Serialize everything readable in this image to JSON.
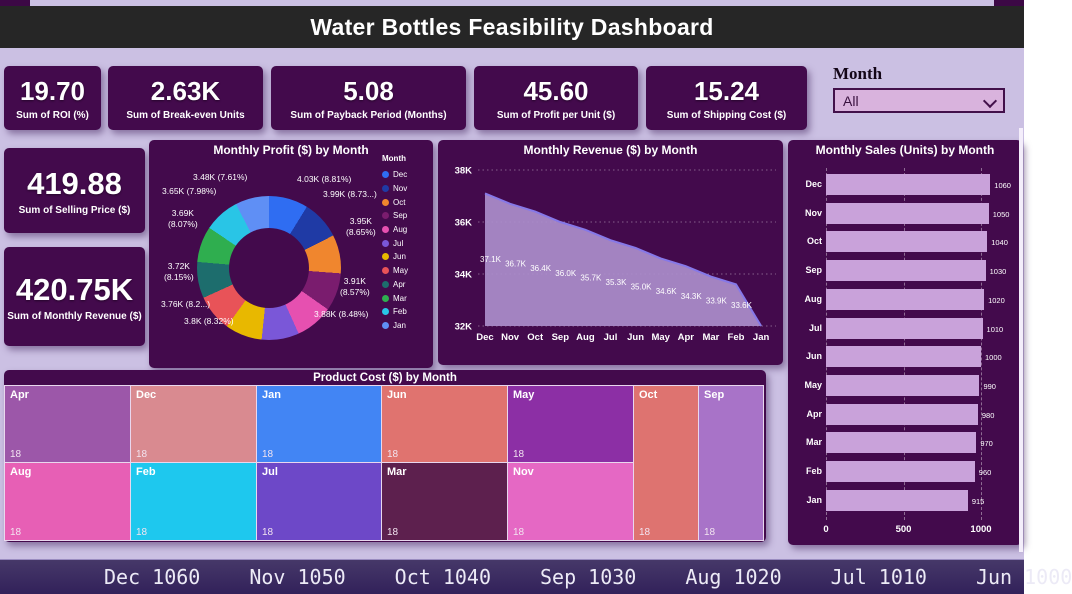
{
  "page": {
    "title": "Water Bottles Feasibility Dashboard"
  },
  "kpis": [
    {
      "value": "19.70",
      "label": "Sum of ROI (%)"
    },
    {
      "value": "2.63K",
      "label": "Sum of Break-even Units"
    },
    {
      "value": "5.08",
      "label": "Sum of Payback Period (Months)"
    },
    {
      "value": "45.60",
      "label": "Sum of Profit per Unit ($)"
    },
    {
      "value": "15.24",
      "label": "Sum of Shipping Cost ($)"
    }
  ],
  "slicer": {
    "header": "Month",
    "value": "All",
    "icon": "chevron-down-icon"
  },
  "side_kpis": [
    {
      "value": "419.88",
      "label": "Sum of Selling Price ($)"
    },
    {
      "value": "420.75K",
      "label": "Sum of Monthly Revenue ($)"
    }
  ],
  "chart_data": {
    "donut": {
      "type": "pie",
      "title": "Monthly Profit ($) by Month",
      "legend_title": "Month",
      "legend_position": "right",
      "slices": [
        {
          "month": "Dec",
          "value_k": 4.03,
          "pct": 8.81,
          "color": "#2f6df2"
        },
        {
          "month": "Nov",
          "value_k": 3.99,
          "pct": 8.73,
          "color": "#1f3aa5"
        },
        {
          "month": "Oct",
          "value_k": 3.95,
          "pct": 8.65,
          "color": "#f0862e"
        },
        {
          "month": "Sep",
          "value_k": 3.91,
          "pct": 8.57,
          "color": "#7a1c6e"
        },
        {
          "month": "Aug",
          "value_k": 3.88,
          "pct": 8.48,
          "color": "#e650b0"
        },
        {
          "month": "Jul",
          "value_k": 3.84,
          "pct": 8.4,
          "color": "#7a57d8"
        },
        {
          "month": "Jun",
          "value_k": 3.8,
          "pct": 8.32,
          "color": "#e8b800"
        },
        {
          "month": "May",
          "value_k": 3.76,
          "pct": 8.24,
          "color": "#e85358"
        },
        {
          "month": "Apr",
          "value_k": 3.72,
          "pct": 8.15,
          "color": "#1d6d6d"
        },
        {
          "month": "Mar",
          "value_k": 3.69,
          "pct": 8.07,
          "color": "#2fae4f"
        },
        {
          "month": "Feb",
          "value_k": 3.65,
          "pct": 7.98,
          "color": "#29c5e6"
        },
        {
          "month": "Jan",
          "value_k": 3.48,
          "pct": 7.61,
          "color": "#5f8ff5"
        }
      ],
      "callouts": [
        "3.48K (7.61%)",
        "3.65K (7.98%)",
        "3.69K\n(8.07%)",
        "3.72K\n(8.15%)",
        "3.76K (8.2...)",
        "3.8K (8.32%)",
        "4.03K (8.81%)",
        "3.99K (8.73...)",
        "3.95K\n(8.65%)",
        "3.91K\n(8.57%)",
        "3.88K (8.48%)"
      ]
    },
    "area": {
      "type": "area",
      "title": "Monthly Revenue ($) by Month",
      "categories": [
        "Dec",
        "Nov",
        "Oct",
        "Sep",
        "Aug",
        "Jul",
        "Jun",
        "May",
        "Apr",
        "Mar",
        "Feb",
        "Jan"
      ],
      "values_k": [
        37.1,
        36.7,
        36.4,
        36.0,
        35.7,
        35.3,
        35.0,
        34.6,
        34.3,
        33.9,
        33.6,
        32.0
      ],
      "point_labels": [
        "37.1K",
        "36.7K",
        "36.4K",
        "36.0K",
        "35.7K",
        "35.3K",
        "35.0K",
        "34.6K",
        "34.3K",
        "33.9K",
        "33.6K",
        ""
      ],
      "yticks": [
        "38K",
        "36K",
        "34K",
        "32K"
      ],
      "ylim_k": [
        32,
        38
      ],
      "grid": "dotted",
      "fill": "#ab8ecb",
      "line": "#8678e8"
    },
    "bars": {
      "type": "bar",
      "orientation": "horizontal",
      "title": "Monthly Sales (Units) by Month",
      "categories": [
        "Dec",
        "Nov",
        "Oct",
        "Sep",
        "Aug",
        "Jul",
        "Jun",
        "May",
        "Apr",
        "Mar",
        "Feb",
        "Jan"
      ],
      "values": [
        1060,
        1050,
        1040,
        1030,
        1020,
        1010,
        1000,
        990,
        980,
        970,
        960,
        915
      ],
      "xticks": [
        "0",
        "500",
        "1000"
      ],
      "xlim": [
        0,
        1100
      ],
      "bar_color": "#c9a2da"
    },
    "treemap": {
      "type": "treemap",
      "title": "Product Cost ($) by Month",
      "tiles": [
        {
          "month": "Apr",
          "value": "18",
          "color": "#9c57a9"
        },
        {
          "month": "Dec",
          "value": "18",
          "color": "#d98a90"
        },
        {
          "month": "Jan",
          "value": "18",
          "color": "#4285f4"
        },
        {
          "month": "Jun",
          "value": "18",
          "color": "#e0736f"
        },
        {
          "month": "May",
          "value": "18",
          "color": "#8c2fa5"
        },
        {
          "month": "Oct",
          "value": "18",
          "color": "#de7370"
        },
        {
          "month": "Sep",
          "value": "18",
          "color": "#a873c8"
        },
        {
          "month": "Aug",
          "value": "18",
          "color": "#e75fb5"
        },
        {
          "month": "Feb",
          "value": "18",
          "color": "#1ec8ee"
        },
        {
          "month": "Jul",
          "value": "18",
          "color": "#6d48c8"
        },
        {
          "month": "Mar",
          "value": "18",
          "color": "#5d204e"
        },
        {
          "month": "Nov",
          "value": "18",
          "color": "#e568c4"
        }
      ]
    },
    "ticker": {
      "items": [
        "Dec 1060",
        "Nov 1050",
        "Oct 1040",
        "Sep 1030",
        "Aug 1020",
        "Jul 1010",
        "Jun 1000"
      ]
    }
  },
  "colors": {
    "page_bg": "#cbc0e3",
    "card_bg": "#430a4c",
    "title_bar": "#262626",
    "ticker_bg": "#382a5e",
    "slicer_fill": "#d9b3dd"
  }
}
